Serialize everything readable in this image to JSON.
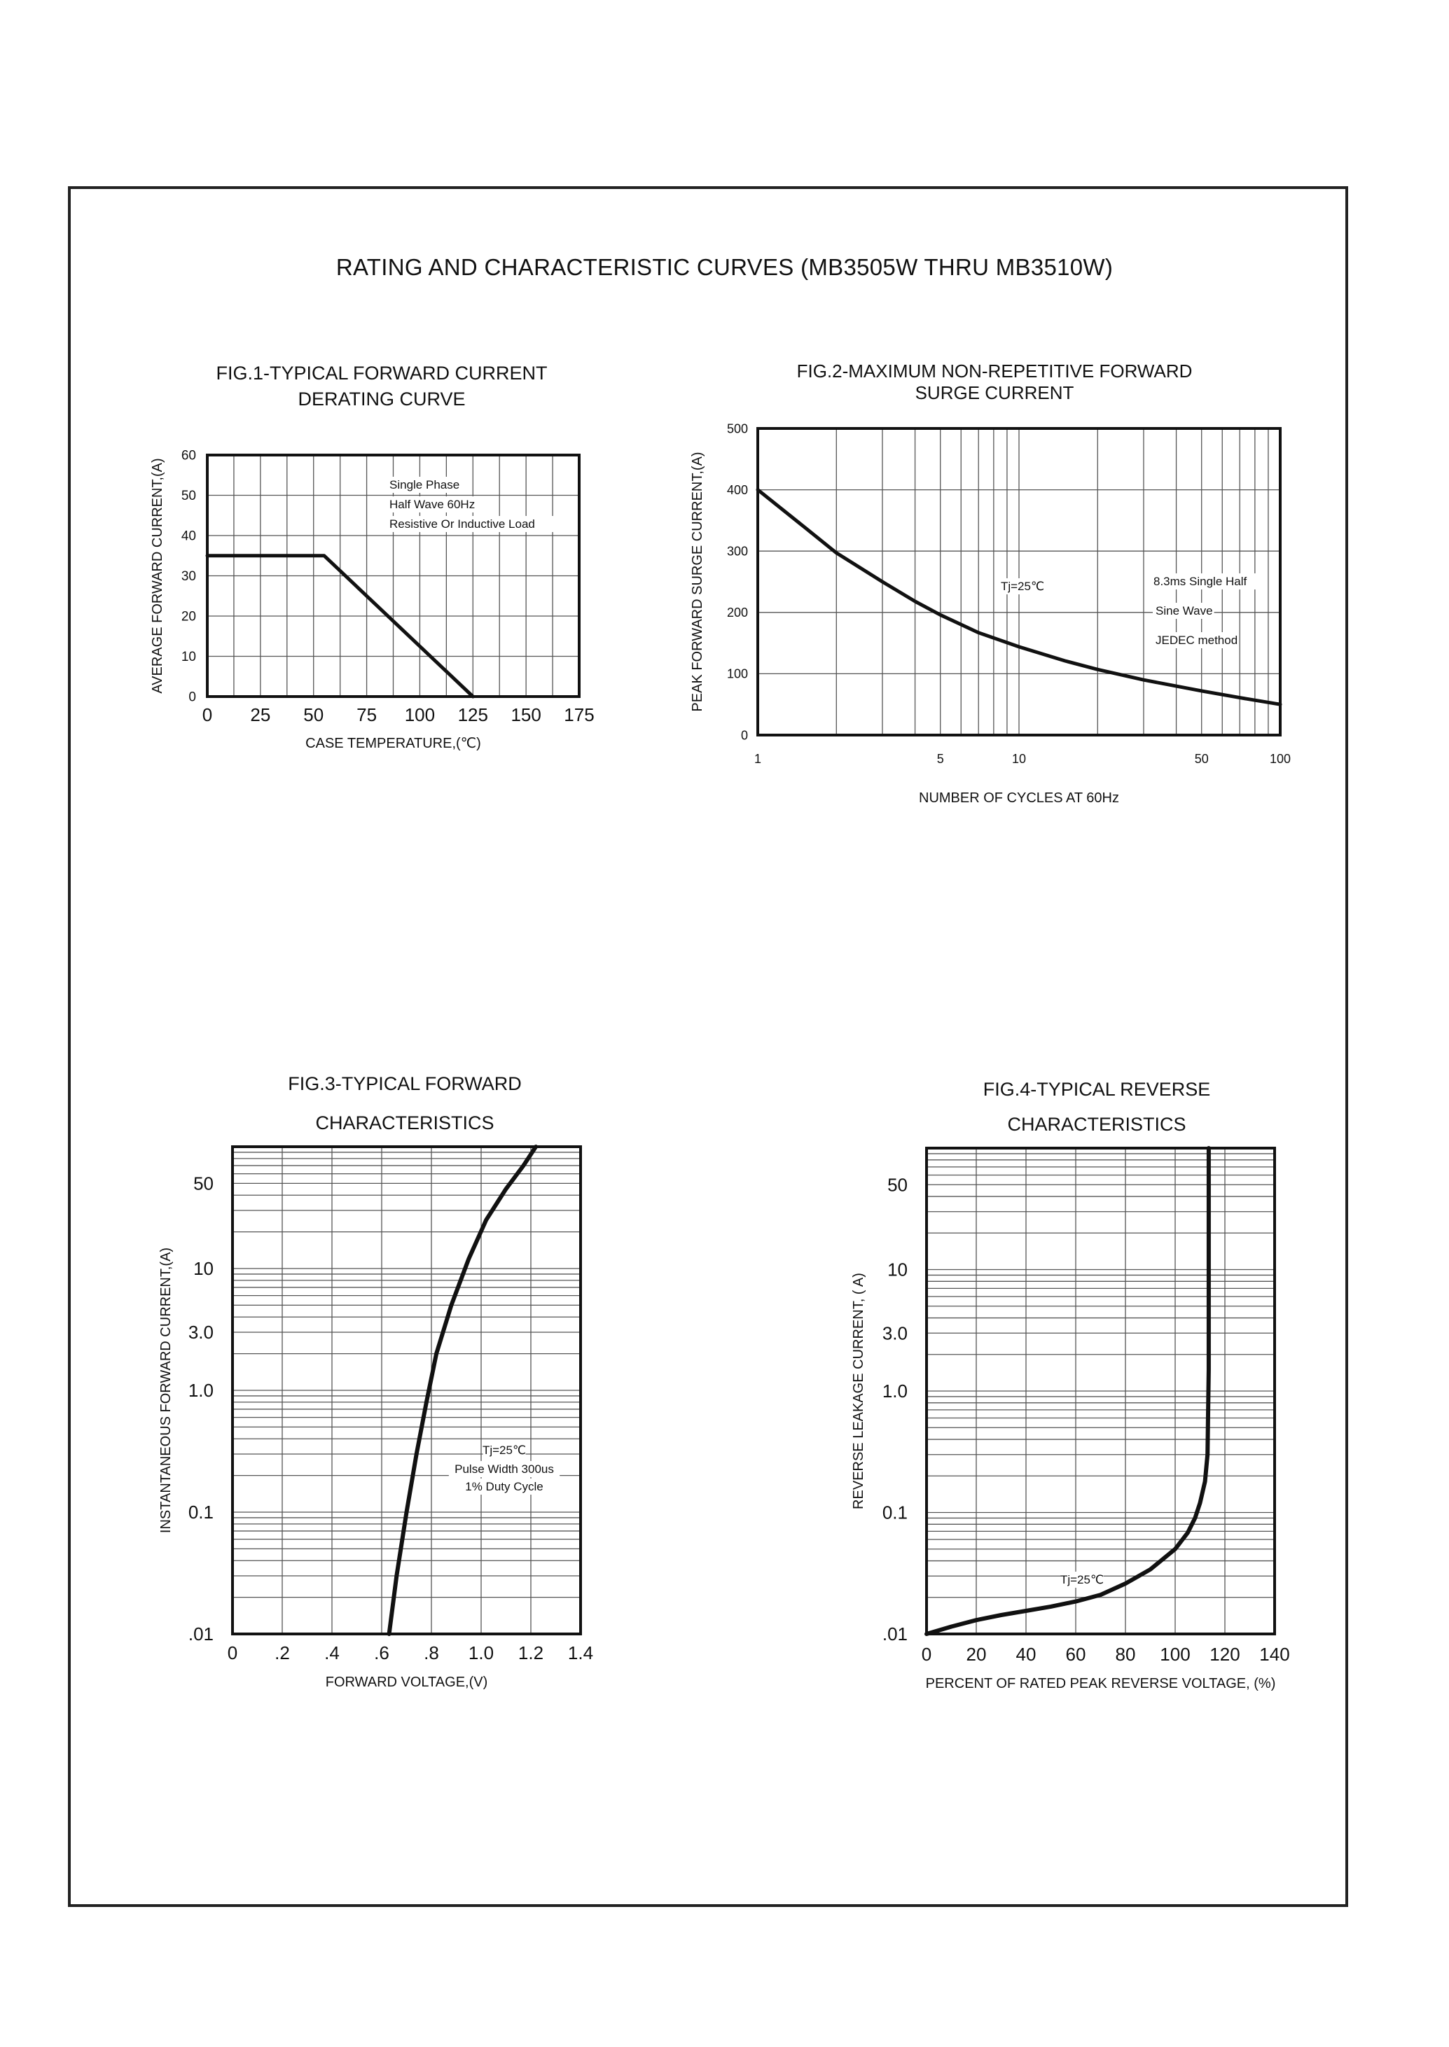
{
  "page_title": "RATING AND CHARACTERISTIC CURVES (MB3505W THRU MB3510W)",
  "chart_data": [
    {
      "id": "fig1",
      "type": "line",
      "title_lines": [
        "FIG.1-TYPICAL FORWARD CURRENT",
        "DERATING CURVE"
      ],
      "xlabel": "CASE TEMPERATURE,(℃)",
      "ylabel": "AVERAGE FORWARD CURRENT,(A)",
      "xlim": [
        0,
        175
      ],
      "ylim": [
        0,
        60
      ],
      "x_scale": "linear",
      "y_scale": "linear",
      "grid": true,
      "x_ticks": [
        0,
        25,
        50,
        75,
        100,
        125,
        150,
        175
      ],
      "y_ticks": [
        0,
        10,
        20,
        30,
        40,
        50,
        60
      ],
      "annotations": [
        "Single Phase",
        "Half Wave 60Hz",
        "Resistive Or Inductive Load"
      ],
      "series": [
        {
          "x": [
            0,
            55,
            125
          ],
          "y": [
            35,
            35,
            0
          ]
        }
      ]
    },
    {
      "id": "fig2",
      "type": "line",
      "title_lines": [
        "FIG.2-MAXIMUM NON-REPETITIVE FORWARD",
        "SURGE CURRENT"
      ],
      "xlabel": "NUMBER OF CYCLES AT 60Hz",
      "ylabel": "PEAK FORWARD SURGE CURRENT,(A)",
      "xlim": [
        1,
        100
      ],
      "ylim": [
        0,
        500
      ],
      "x_scale": "log",
      "y_scale": "linear",
      "grid": true,
      "x_ticks": [
        1,
        5,
        10,
        50,
        100
      ],
      "y_ticks": [
        0,
        100,
        200,
        300,
        400,
        500
      ],
      "annotations": [
        "Tj=25℃",
        "8.3ms Single Half",
        "Sine Wave",
        "JEDEC method"
      ],
      "series": [
        {
          "x": [
            1,
            1.5,
            2,
            3,
            4,
            5,
            7,
            10,
            15,
            20,
            30,
            50,
            70,
            100
          ],
          "y": [
            400,
            340,
            297,
            250,
            218,
            196,
            167,
            144,
            121,
            107,
            90,
            72,
            61,
            50
          ]
        }
      ]
    },
    {
      "id": "fig3",
      "type": "line",
      "title_lines": [
        "FIG.3-TYPICAL FORWARD",
        "CHARACTERISTICS"
      ],
      "xlabel": "FORWARD VOLTAGE,(V)",
      "ylabel": "INSTANTANEOUS FORWARD CURRENT,(A)",
      "xlim": [
        0,
        1.4
      ],
      "ylim": [
        0.01,
        100
      ],
      "x_scale": "linear",
      "y_scale": "log",
      "grid": true,
      "x_tick_labels": [
        "0",
        ".2",
        ".4",
        ".6",
        ".8",
        "1.0",
        "1.2",
        "1.4"
      ],
      "y_tick_values": [
        0.01,
        0.1,
        1,
        3,
        10,
        50
      ],
      "y_tick_labels": [
        ".01",
        "0.1",
        "1.0",
        "3.0",
        "10",
        "50"
      ],
      "annotations": [
        "Tj=25℃",
        "Pulse Width 300us",
        "1% Duty Cycle"
      ],
      "series": [
        {
          "x": [
            0.63,
            0.66,
            0.7,
            0.74,
            0.78,
            0.82,
            0.88,
            0.95,
            1.02,
            1.1,
            1.17,
            1.22
          ],
          "y": [
            0.01,
            0.03,
            0.1,
            0.3,
            0.8,
            2.0,
            5.0,
            12,
            25,
            45,
            70,
            100
          ]
        }
      ]
    },
    {
      "id": "fig4",
      "type": "line",
      "title_lines": [
        "FIG.4-TYPICAL REVERSE",
        "CHARACTERISTICS"
      ],
      "xlabel": "PERCENT OF RATED PEAK REVERSE VOLTAGE, (%)",
      "ylabel": "REVERSE LEAKAGE CURRENT, (  A)",
      "xlim": [
        0,
        140
      ],
      "ylim": [
        0.01,
        100
      ],
      "x_scale": "linear",
      "y_scale": "log",
      "grid": true,
      "x_ticks": [
        0,
        20,
        40,
        60,
        80,
        100,
        120,
        140
      ],
      "y_tick_values": [
        0.01,
        0.1,
        1,
        3,
        10,
        50
      ],
      "y_tick_labels": [
        ".01",
        "0.1",
        "1.0",
        "3.0",
        "10",
        "50"
      ],
      "annotations": [
        "Tj=25℃"
      ],
      "series": [
        {
          "x": [
            0,
            10,
            20,
            30,
            40,
            50,
            60,
            70,
            80,
            90,
            100,
            105,
            108,
            110,
            112,
            113,
            113.5,
            113.5
          ],
          "y": [
            0.01,
            0.0115,
            0.013,
            0.0143,
            0.0155,
            0.0168,
            0.0185,
            0.021,
            0.026,
            0.034,
            0.05,
            0.068,
            0.09,
            0.12,
            0.18,
            0.3,
            1.5,
            100
          ]
        }
      ]
    }
  ]
}
